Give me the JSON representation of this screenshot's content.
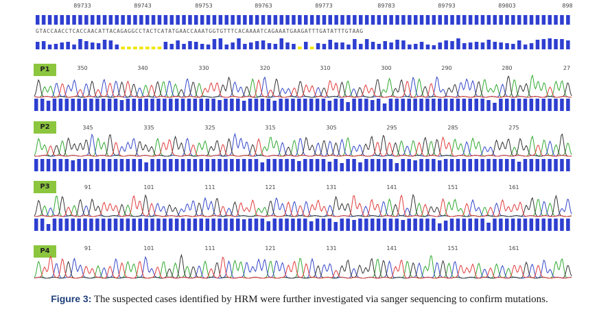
{
  "reference": {
    "positions": [
      "89733",
      "89743",
      "89753",
      "89763",
      "89773",
      "89783",
      "89793",
      "89803",
      "898"
    ],
    "sequence": "GTACCAACCTCACCAACATTACAGAGGCCTACTCATATGAACCAAATGGTGTTTCACAAAATCAGAAATGAAGATTTGATATTTGTAAG"
  },
  "panels": [
    {
      "label": "P1",
      "ticks": [
        "350",
        "340",
        "330",
        "320",
        "310",
        "300",
        "290",
        "280",
        "27"
      ]
    },
    {
      "label": "P2",
      "ticks": [
        "345",
        "335",
        "325",
        "315",
        "305",
        "295",
        "285",
        "275"
      ]
    },
    {
      "label": "P3",
      "ticks": [
        "91",
        "101",
        "111",
        "121",
        "131",
        "141",
        "151",
        "161"
      ]
    },
    {
      "label": "P4",
      "ticks": [
        "91",
        "101",
        "111",
        "121",
        "131",
        "141",
        "151",
        "161"
      ]
    }
  ],
  "caption": {
    "label": "Figure 3:",
    "text": " The suspected cases identified by HRM were further investigated via sanger sequencing to confirm mutations."
  },
  "colors": {
    "A": "#2fa82f",
    "C": "#3346c8",
    "G": "#333333",
    "T": "#e03a3a",
    "quality": "#2e3fd0",
    "low_quality": "#f2e600",
    "label_bg": "#8cc63f"
  }
}
